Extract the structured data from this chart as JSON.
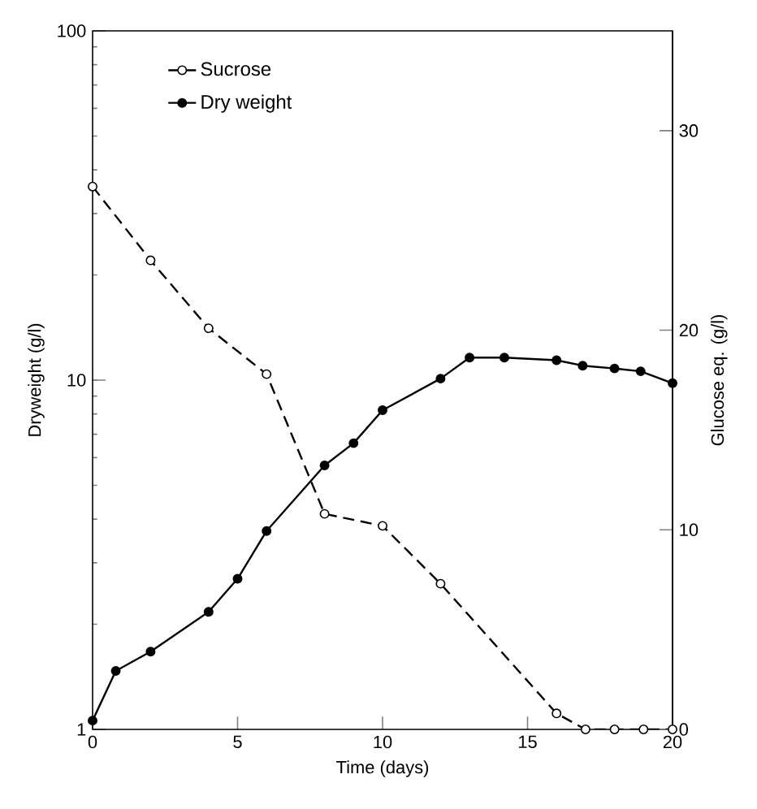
{
  "chart_data": {
    "type": "line",
    "xlabel": "Time (days)",
    "ylabel": "Dryweight (g/l)",
    "y2label": "Glucose eq. (g/l)",
    "xlim": [
      0,
      20
    ],
    "xticks": [
      0,
      5,
      10,
      15,
      20
    ],
    "ylim": [
      1,
      100
    ],
    "yticks": [
      1,
      10,
      100
    ],
    "y2lim": [
      0,
      35
    ],
    "y2ticks": [
      0,
      10,
      20,
      30
    ],
    "log": "y",
    "legend": "top left",
    "series": [
      {
        "name": "Sucrose",
        "color": "#000000",
        "axis": "y2",
        "line_style": "dashed",
        "marker": "circle",
        "x": [
          0,
          2,
          4,
          6,
          8,
          10,
          12,
          16,
          17,
          18,
          19,
          20
        ],
        "values": [
          27.2,
          23.5,
          20.1,
          17.8,
          10.8,
          10.2,
          7.3,
          0.8,
          0,
          0,
          0,
          0
        ]
      },
      {
        "name": "Dry weight",
        "color": "#000000",
        "line_style": "solid",
        "marker": "circle",
        "x": [
          0,
          0.8,
          2,
          4,
          5,
          6,
          8,
          9,
          10,
          12,
          13,
          14.2,
          16,
          16.9,
          18,
          18.9,
          20
        ],
        "values": [
          1.06,
          1.47,
          1.67,
          2.17,
          2.7,
          3.7,
          5.7,
          6.6,
          8.2,
          10.1,
          11.6,
          11.6,
          11.4,
          11.0,
          10.8,
          10.6,
          9.8
        ]
      }
    ]
  }
}
